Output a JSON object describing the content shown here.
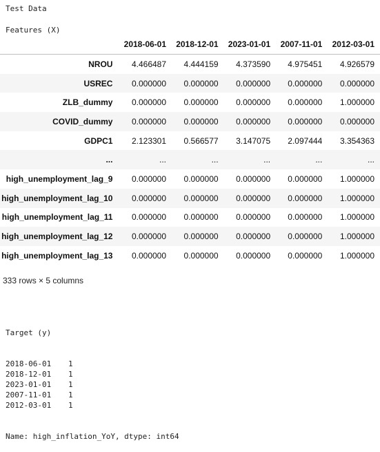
{
  "outputs": {
    "test_data_label": "Test Data",
    "features_label": "Features (X)"
  },
  "table": {
    "columns": [
      "2018-06-01",
      "2018-12-01",
      "2023-01-01",
      "2007-11-01",
      "2012-03-01"
    ],
    "rows": [
      {
        "index": "NROU",
        "values": [
          "4.466487",
          "4.444159",
          "4.373590",
          "4.975451",
          "4.926579"
        ]
      },
      {
        "index": "USREC",
        "values": [
          "0.000000",
          "0.000000",
          "0.000000",
          "0.000000",
          "0.000000"
        ]
      },
      {
        "index": "ZLB_dummy",
        "values": [
          "0.000000",
          "0.000000",
          "0.000000",
          "0.000000",
          "1.000000"
        ]
      },
      {
        "index": "COVID_dummy",
        "values": [
          "0.000000",
          "0.000000",
          "0.000000",
          "0.000000",
          "0.000000"
        ]
      },
      {
        "index": "GDPC1",
        "values": [
          "2.123301",
          "0.566577",
          "3.147075",
          "2.097444",
          "3.354363"
        ]
      },
      {
        "index": "...",
        "values": [
          "...",
          "...",
          "...",
          "...",
          "..."
        ]
      },
      {
        "index": "high_unemployment_lag_9",
        "values": [
          "0.000000",
          "0.000000",
          "0.000000",
          "0.000000",
          "1.000000"
        ]
      },
      {
        "index": "high_unemployment_lag_10",
        "values": [
          "0.000000",
          "0.000000",
          "0.000000",
          "0.000000",
          "1.000000"
        ]
      },
      {
        "index": "high_unemployment_lag_11",
        "values": [
          "0.000000",
          "0.000000",
          "0.000000",
          "0.000000",
          "1.000000"
        ]
      },
      {
        "index": "high_unemployment_lag_12",
        "values": [
          "0.000000",
          "0.000000",
          "0.000000",
          "0.000000",
          "1.000000"
        ]
      },
      {
        "index": "high_unemployment_lag_13",
        "values": [
          "0.000000",
          "0.000000",
          "0.000000",
          "0.000000",
          "1.000000"
        ]
      }
    ],
    "shape_note": "333 rows × 5 columns"
  },
  "target": {
    "label": "Target (y)",
    "entries": [
      {
        "key": "2018-06-01",
        "value": "1"
      },
      {
        "key": "2018-12-01",
        "value": "1"
      },
      {
        "key": "2023-01-01",
        "value": "1"
      },
      {
        "key": "2007-11-01",
        "value": "1"
      },
      {
        "key": "2012-03-01",
        "value": "1"
      }
    ],
    "footer": "Name: high_inflation_YoY, dtype: int64"
  }
}
